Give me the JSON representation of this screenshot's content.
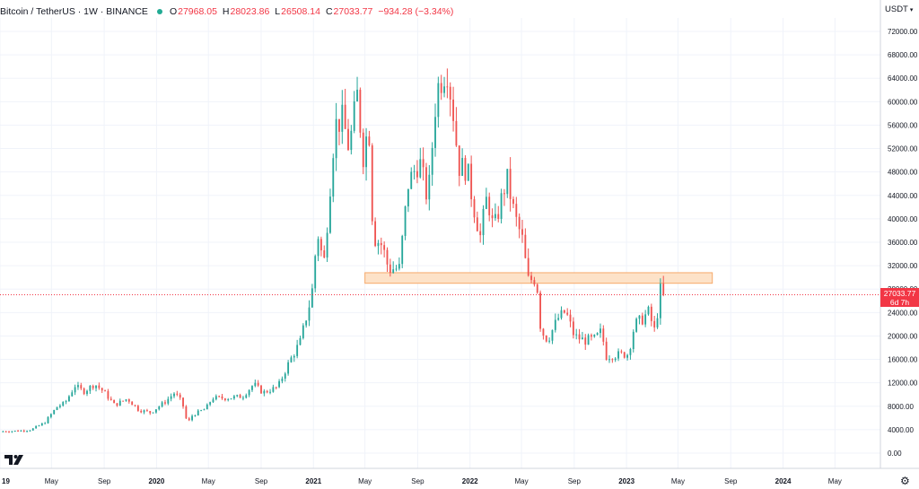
{
  "header": {
    "symbol": "Bitcoin / TetherUS · 1W · BINANCE",
    "open_label": "O",
    "open": "27968.05",
    "high_label": "H",
    "high": "28023.86",
    "low_label": "L",
    "low": "26508.14",
    "close_label": "C",
    "close": "27033.77",
    "change": "−934.28 (−3.34%)",
    "status_color": "#22ab94"
  },
  "currency": {
    "label": "USDT",
    "caret": "▾"
  },
  "price_tag": {
    "price": "27033.77",
    "countdown": "6d 7h",
    "color": "#f23645"
  },
  "icons": {
    "logo": "tradingview-logo-icon",
    "settings": "gear-icon"
  },
  "colors": {
    "up": "#26a69a",
    "down": "#ef5350",
    "zone_fill": "#fde2c8",
    "zone_border": "#f6a96a",
    "price_line": "#f23645",
    "grid": "#f0f3fa"
  },
  "chart_data": {
    "type": "candlestick",
    "title": "Bitcoin / TetherUS · 1W · BINANCE",
    "ylim": [
      0,
      74000
    ],
    "y_ticks": [
      "0.00",
      "4000.00",
      "8000.00",
      "12000.00",
      "16000.00",
      "20000.00",
      "24000.00",
      "28000.00",
      "32000.00",
      "36000.00",
      "40000.00",
      "44000.00",
      "48000.00",
      "52000.00",
      "56000.00",
      "60000.00",
      "64000.00",
      "68000.00",
      "72000.00"
    ],
    "x_ticks": [
      {
        "label": "19",
        "date": "2019-01-01",
        "year": true
      },
      {
        "label": "May",
        "date": "2019-05-01"
      },
      {
        "label": "Sep",
        "date": "2019-09-01"
      },
      {
        "label": "2020",
        "date": "2020-01-01",
        "year": true
      },
      {
        "label": "May",
        "date": "2020-05-01"
      },
      {
        "label": "Sep",
        "date": "2020-09-01"
      },
      {
        "label": "2021",
        "date": "2021-01-01",
        "year": true
      },
      {
        "label": "May",
        "date": "2021-05-01"
      },
      {
        "label": "Sep",
        "date": "2021-09-01"
      },
      {
        "label": "2022",
        "date": "2022-01-01",
        "year": true
      },
      {
        "label": "May",
        "date": "2022-05-01"
      },
      {
        "label": "Sep",
        "date": "2022-09-01"
      },
      {
        "label": "2023",
        "date": "2023-01-01",
        "year": true
      },
      {
        "label": "May",
        "date": "2023-05-01"
      },
      {
        "label": "Sep",
        "date": "2023-09-01"
      },
      {
        "label": "2024",
        "date": "2024-01-01",
        "year": true
      },
      {
        "label": "May",
        "date": "2024-05-01"
      }
    ],
    "x_range": [
      "2019-01-01",
      "2024-08-15"
    ],
    "zone": {
      "start": "2021-05-01",
      "end": "2023-07-20",
      "low": 29000,
      "high": 30800
    },
    "last_price": 27033.77,
    "anchors": [
      [
        "2019-01-01",
        3700
      ],
      [
        "2019-02-15",
        3800
      ],
      [
        "2019-03-15",
        4000
      ],
      [
        "2019-04-15",
        5200
      ],
      [
        "2019-05-15",
        8000
      ],
      [
        "2019-06-01",
        8500
      ],
      [
        "2019-06-25",
        11500
      ],
      [
        "2019-07-15",
        10500
      ],
      [
        "2019-08-10",
        11800
      ],
      [
        "2019-09-01",
        10400
      ],
      [
        "2019-09-25",
        8200
      ],
      [
        "2019-10-25",
        9300
      ],
      [
        "2019-11-20",
        7400
      ],
      [
        "2019-12-18",
        6900
      ],
      [
        "2020-01-20",
        8700
      ],
      [
        "2020-02-12",
        10300
      ],
      [
        "2020-03-01",
        8600
      ],
      [
        "2020-03-13",
        5000
      ],
      [
        "2020-03-25",
        6500
      ],
      [
        "2020-04-25",
        7600
      ],
      [
        "2020-05-10",
        9400
      ],
      [
        "2020-06-15",
        9400
      ],
      [
        "2020-07-20",
        9700
      ],
      [
        "2020-08-15",
        11800
      ],
      [
        "2020-09-05",
        10300
      ],
      [
        "2020-10-10",
        11300
      ],
      [
        "2020-11-05",
        15500
      ],
      [
        "2020-12-01",
        19000
      ],
      [
        "2020-12-28",
        27000
      ],
      [
        "2021-01-10",
        38000
      ],
      [
        "2021-01-25",
        32000
      ],
      [
        "2021-02-20",
        56000
      ],
      [
        "2021-03-10",
        57000
      ],
      [
        "2021-03-25",
        52000
      ],
      [
        "2021-04-15",
        62000
      ],
      [
        "2021-04-25",
        50000
      ],
      [
        "2021-05-10",
        56500
      ],
      [
        "2021-05-20",
        37000
      ],
      [
        "2021-06-10",
        35500
      ],
      [
        "2021-06-25",
        31500
      ],
      [
        "2021-07-20",
        31500
      ],
      [
        "2021-08-10",
        46000
      ],
      [
        "2021-09-05",
        50000
      ],
      [
        "2021-09-25",
        43000
      ],
      [
        "2021-10-15",
        62000
      ],
      [
        "2021-11-08",
        66000
      ],
      [
        "2021-11-25",
        57000
      ],
      [
        "2021-12-05",
        49000
      ],
      [
        "2021-12-25",
        48500
      ],
      [
        "2022-01-10",
        42000
      ],
      [
        "2022-01-25",
        37000
      ],
      [
        "2022-02-10",
        44000
      ],
      [
        "2022-02-25",
        38000
      ],
      [
        "2022-03-28",
        47000
      ],
      [
        "2022-04-15",
        40500
      ],
      [
        "2022-05-05",
        36000
      ],
      [
        "2022-05-15",
        29500
      ],
      [
        "2022-06-05",
        29800
      ],
      [
        "2022-06-15",
        21000
      ],
      [
        "2022-07-01",
        19300
      ],
      [
        "2022-07-25",
        23000
      ],
      [
        "2022-08-12",
        24200
      ],
      [
        "2022-09-01",
        20000
      ],
      [
        "2022-09-25",
        19200
      ],
      [
        "2022-10-20",
        19500
      ],
      [
        "2022-11-05",
        21000
      ],
      [
        "2022-11-12",
        16500
      ],
      [
        "2022-12-15",
        16800
      ],
      [
        "2023-01-05",
        16900
      ],
      [
        "2023-01-20",
        22000
      ],
      [
        "2023-02-10",
        23000
      ],
      [
        "2023-02-20",
        24300
      ],
      [
        "2023-03-10",
        20300
      ],
      [
        "2023-03-18",
        27500
      ],
      [
        "2023-03-25",
        28300
      ],
      [
        "2023-04-01",
        27033.77
      ]
    ]
  }
}
